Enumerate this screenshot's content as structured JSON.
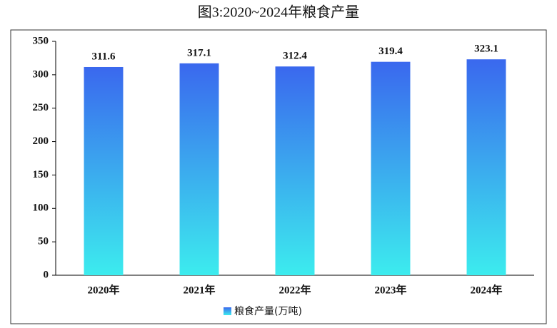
{
  "chart_data": {
    "type": "bar",
    "title": "图3:2020~2024年粮食产量",
    "categories": [
      "2020年",
      "2021年",
      "2022年",
      "2023年",
      "2024年"
    ],
    "series": [
      {
        "name": "粮食产量(万吨)",
        "colors": [
          "#3a68ee",
          "#3cecee"
        ],
        "values": [
          311.6,
          317.1,
          312.4,
          319.4,
          323.1
        ]
      }
    ],
    "ylim": [
      0,
      350
    ],
    "yticks": [
      0,
      50,
      100,
      150,
      200,
      250,
      300,
      350
    ],
    "grid": false,
    "legend": "bottom"
  }
}
